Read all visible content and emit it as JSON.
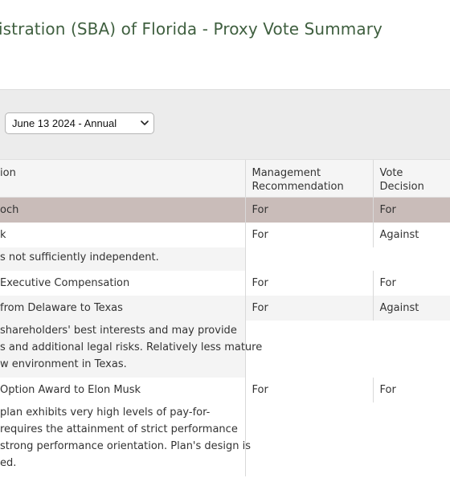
{
  "page": {
    "title": "istration (SBA) of Florida - Proxy Vote Summary"
  },
  "filter": {
    "meeting_selected": "June 13 2024 - Annual"
  },
  "table": {
    "headers": {
      "proposal": "ion",
      "mgmt": "Management Recommendation",
      "vote": "Vote Decision"
    },
    "rows": [
      {
        "proposal": "och",
        "mgmt": "For",
        "vote": "For"
      },
      {
        "proposal": "k",
        "mgmt": "For",
        "vote": "Against"
      },
      {
        "rationale": "s not sufficiently independent."
      },
      {
        "proposal": "Executive Compensation",
        "mgmt": "For",
        "vote": "For"
      },
      {
        "proposal": "from Delaware to Texas",
        "mgmt": "For",
        "vote": "Against"
      },
      {
        "rationale_lines": [
          "shareholders' best interests and may provide",
          "s and additional legal risks. Relatively less mature",
          "w environment in Texas."
        ]
      },
      {
        "proposal": "Option Award to Elon Musk",
        "mgmt": "For",
        "vote": "For"
      },
      {
        "rationale_lines": [
          "plan exhibits very high levels of pay-for-",
          "requires the attainment of strict performance",
          "strong performance orientation. Plan's design is",
          "ed."
        ]
      }
    ]
  },
  "colors": {
    "title": "#3f5f3f",
    "highlight_row": "#c9bcb9",
    "filter_bar": "#ececec"
  },
  "icons": {
    "select_arrow": "chevron-down-icon"
  }
}
